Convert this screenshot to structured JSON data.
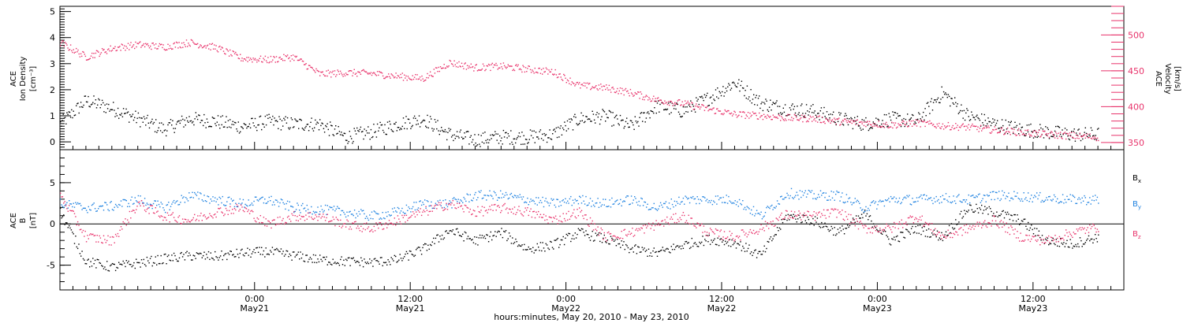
{
  "chart_data": [
    {
      "type": "scatter",
      "panel": "plasma",
      "ylabel_left": [
        "ACE",
        "Ion Density",
        "[cm⁻³]"
      ],
      "ylabel_right": [
        "ACE",
        "Velocity",
        "[km/s]"
      ],
      "ylim_left": [
        -0.3,
        5.2
      ],
      "ylim_right": [
        340,
        540
      ],
      "yticks_left": [
        0,
        1,
        2,
        3,
        4,
        5
      ],
      "yticks_right": [
        350,
        400,
        450,
        500
      ],
      "colors": {
        "density": "#000000",
        "velocity": "#e8336b"
      },
      "series": [
        {
          "axis": "left",
          "x": [
            0,
            2,
            4,
            6,
            8,
            10,
            12,
            14,
            16,
            18,
            20,
            22,
            24,
            26,
            28,
            30,
            32,
            34,
            36,
            38,
            40,
            42,
            44,
            46,
            48,
            50,
            52,
            54,
            56,
            58,
            60,
            62,
            64,
            66,
            68,
            70,
            72,
            74,
            76,
            78,
            80
          ],
          "values": [
            0.7,
            1.6,
            1.3,
            0.9,
            0.5,
            0.9,
            0.8,
            0.6,
            0.8,
            0.7,
            0.7,
            0.2,
            0.4,
            0.7,
            0.9,
            0.3,
            0.1,
            0.2,
            0.2,
            0.3,
            0.9,
            1.0,
            0.6,
            1.4,
            1.2,
            1.7,
            2.3,
            1.5,
            1.3,
            1.2,
            0.9,
            0.7,
            0.9,
            0.8,
            1.9,
            1.0,
            0.7,
            0.5,
            0.4,
            0.3,
            0.3
          ]
        },
        {
          "axis": "right",
          "x": [
            0,
            2,
            4,
            6,
            8,
            10,
            12,
            14,
            16,
            18,
            20,
            22,
            24,
            26,
            28,
            30,
            32,
            34,
            36,
            38,
            40,
            42,
            44,
            46,
            48,
            50,
            52,
            54,
            56,
            58,
            60,
            62,
            64,
            66,
            68,
            70,
            72,
            74,
            76,
            78,
            80
          ],
          "values": [
            490,
            470,
            482,
            487,
            484,
            490,
            483,
            468,
            466,
            470,
            446,
            448,
            447,
            443,
            440,
            462,
            455,
            457,
            453,
            449,
            430,
            427,
            420,
            410,
            405,
            397,
            390,
            388,
            385,
            384,
            380,
            378,
            375,
            378,
            374,
            372,
            368,
            365,
            362,
            360,
            358
          ]
        }
      ]
    },
    {
      "type": "scatter",
      "panel": "magnetic",
      "ylabel": [
        "ACE",
        "B",
        "[nT]"
      ],
      "ylim": [
        -8,
        9
      ],
      "yticks": [
        -5,
        0,
        5
      ],
      "zero_line": true,
      "colors": {
        "Bx": "#000000",
        "By": "#1f82e0",
        "Bz": "#e8336b"
      },
      "legend_position": "right",
      "series": [
        {
          "name": "Bx",
          "x": [
            0,
            2,
            4,
            6,
            8,
            10,
            12,
            14,
            16,
            18,
            20,
            22,
            24,
            26,
            28,
            30,
            32,
            34,
            36,
            38,
            40,
            42,
            44,
            46,
            48,
            50,
            52,
            54,
            56,
            58,
            60,
            62,
            64,
            66,
            68,
            70,
            72,
            74,
            76,
            78,
            80
          ],
          "values": [
            1.5,
            -4.5,
            -5.2,
            -4.7,
            -4.2,
            -3.8,
            -3.9,
            -3.5,
            -3.3,
            -3.8,
            -4.3,
            -4.5,
            -4.6,
            -4.3,
            -3.0,
            -0.7,
            -2.0,
            -1.0,
            -3.0,
            -2.5,
            -1.0,
            -1.8,
            -3.0,
            -3.5,
            -2.5,
            -1.8,
            -2.2,
            -3.8,
            1.0,
            0.5,
            -1.0,
            1.2,
            -2.0,
            -0.5,
            -1.5,
            2.0,
            1.5,
            0.5,
            -2.0,
            -2.4,
            -1.5
          ]
        },
        {
          "name": "By",
          "x": [
            0,
            2,
            4,
            6,
            8,
            10,
            12,
            14,
            16,
            18,
            20,
            22,
            24,
            26,
            28,
            30,
            32,
            34,
            36,
            38,
            40,
            42,
            44,
            46,
            48,
            50,
            52,
            54,
            56,
            58,
            60,
            62,
            64,
            66,
            68,
            70,
            72,
            74,
            76,
            78,
            80
          ],
          "values": [
            2.5,
            2.0,
            2.2,
            3.0,
            2.0,
            3.5,
            3.0,
            2.5,
            3.0,
            2.0,
            1.8,
            1.5,
            1.0,
            1.5,
            2.5,
            2.5,
            3.5,
            3.5,
            3.0,
            2.5,
            3.0,
            2.5,
            3.0,
            2.0,
            3.0,
            3.0,
            3.0,
            1.0,
            3.8,
            3.5,
            3.5,
            2.0,
            3.0,
            3.0,
            3.2,
            3.0,
            3.5,
            3.4,
            3.2,
            3.0,
            3.0
          ]
        },
        {
          "name": "Bz",
          "x": [
            0,
            2,
            4,
            6,
            8,
            10,
            12,
            14,
            16,
            18,
            20,
            22,
            24,
            26,
            28,
            30,
            32,
            34,
            36,
            38,
            40,
            42,
            44,
            46,
            48,
            50,
            52,
            54,
            56,
            58,
            60,
            62,
            64,
            66,
            68,
            70,
            72,
            74,
            76,
            78,
            80
          ],
          "values": [
            3.5,
            -1.5,
            -2.0,
            2.5,
            1.0,
            0.5,
            1.5,
            2.0,
            0.0,
            1.0,
            1.0,
            0.0,
            -0.5,
            0.5,
            1.5,
            2.5,
            1.5,
            2.0,
            1.5,
            0.5,
            1.5,
            -1.5,
            -1.0,
            0.0,
            1.0,
            -1.0,
            -1.5,
            -0.5,
            1.2,
            1.0,
            1.5,
            -0.5,
            -0.5,
            1.0,
            -1.5,
            -0.5,
            0.5,
            -1.5,
            -2.0,
            -1.0,
            -0.3
          ]
        }
      ]
    }
  ],
  "x_axis": {
    "xlim": [
      0,
      82
    ],
    "ticks": [
      {
        "value": 15,
        "top": "0:00",
        "bottom": "May21"
      },
      {
        "value": 27,
        "top": "12:00",
        "bottom": "May21"
      },
      {
        "value": 39,
        "top": "0:00",
        "bottom": "May22"
      },
      {
        "value": 51,
        "top": "12:00",
        "bottom": "May22"
      },
      {
        "value": 63,
        "top": "0:00",
        "bottom": "May23"
      },
      {
        "value": 75,
        "top": "12:00",
        "bottom": "May23"
      }
    ],
    "xlabel": "hours:minutes, May 20, 2010 - May 23, 2010"
  },
  "legend": {
    "Bx": {
      "base": "B",
      "sub": "x"
    },
    "By": {
      "base": "B",
      "sub": "y"
    },
    "Bz": {
      "base": "B",
      "sub": "z"
    }
  }
}
